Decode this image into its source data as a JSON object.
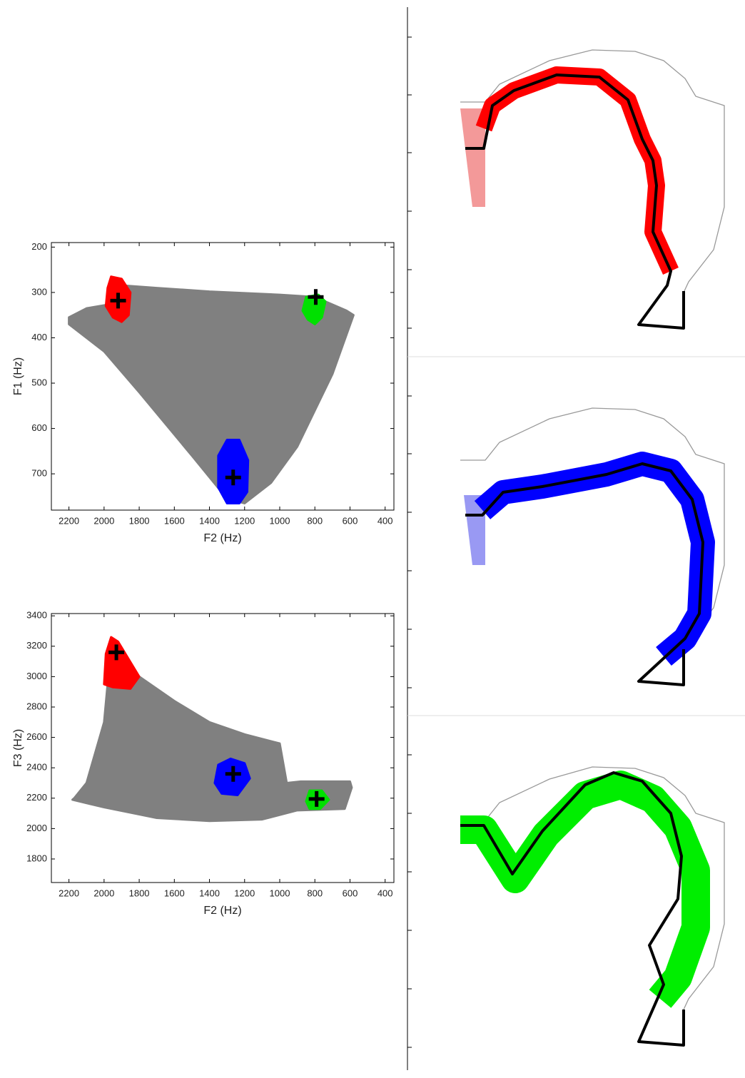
{
  "chart_data": [
    {
      "type": "region",
      "xlabel": "F2 (Hz)",
      "ylabel": "F1 (Hz)",
      "xlim": [
        2300,
        350
      ],
      "ylim": [
        780,
        190
      ],
      "xticks": [
        2200,
        2000,
        1800,
        1600,
        1400,
        1200,
        1000,
        800,
        600,
        400
      ],
      "yticks": [
        200,
        300,
        400,
        500,
        600,
        700
      ],
      "series": [
        {
          "color": "#808080",
          "x": [
            2200,
            2100,
            1950,
            1880,
            1700,
            1400,
            1000,
            800,
            620,
            580,
            700,
            900,
            1050,
            1200,
            1300,
            1500,
            1800,
            2000,
            2200
          ],
          "y": [
            355,
            335,
            325,
            285,
            290,
            298,
            305,
            310,
            340,
            350,
            480,
            640,
            720,
            765,
            755,
            660,
            520,
            430,
            370
          ]
        },
        {
          "color": "#ff0000",
          "x": [
            1960,
            1900,
            1850,
            1860,
            1900,
            1950,
            1990,
            1980
          ],
          "y": [
            265,
            270,
            300,
            350,
            365,
            355,
            330,
            290
          ]
        },
        {
          "color": "#00e000",
          "x": [
            850,
            780,
            740,
            760,
            800,
            840,
            870
          ],
          "y": [
            310,
            305,
            320,
            355,
            370,
            360,
            340
          ]
        },
        {
          "color": "#0000ff",
          "x": [
            1300,
            1230,
            1180,
            1185,
            1230,
            1300,
            1350,
            1350
          ],
          "y": [
            625,
            625,
            670,
            740,
            765,
            765,
            730,
            660
          ]
        }
      ],
      "markers": {
        "color": "#000000",
        "x": [
          1920,
          795,
          1265
        ],
        "y": [
          318,
          310,
          708
        ]
      }
    },
    {
      "type": "region",
      "xlabel": "F2 (Hz)",
      "ylabel": "F3 (Hz)",
      "xlim": [
        2300,
        350
      ],
      "ylim": [
        1645,
        3415
      ],
      "xticks": [
        2200,
        2000,
        1800,
        1600,
        1400,
        1200,
        1000,
        800,
        600,
        400
      ],
      "yticks": [
        1800,
        2000,
        2200,
        2400,
        2600,
        2800,
        3000,
        3200,
        3400
      ],
      "series": [
        {
          "color": "#808080",
          "x": [
            2170,
            2100,
            2000,
            1980,
            1800,
            1600,
            1400,
            1200,
            1000,
            960,
            880,
            600,
            590,
            630,
            900,
            1100,
            1400,
            1700,
            2000,
            2180
          ],
          "y": [
            2200,
            2300,
            2700,
            2950,
            3000,
            2840,
            2700,
            2620,
            2560,
            2300,
            2310,
            2310,
            2270,
            2130,
            2120,
            2060,
            2050,
            2070,
            2140,
            2190
          ]
        },
        {
          "color": "#ff0000",
          "x": [
            1960,
            1920,
            1800,
            1850,
            1950,
            2000,
            1990
          ],
          "y": [
            3260,
            3230,
            3000,
            2920,
            2930,
            2950,
            3150
          ]
        },
        {
          "color": "#0000ff",
          "x": [
            1280,
            1200,
            1170,
            1240,
            1330,
            1370,
            1350
          ],
          "y": [
            2460,
            2430,
            2330,
            2220,
            2230,
            2300,
            2420
          ]
        },
        {
          "color": "#00e000",
          "x": [
            830,
            760,
            720,
            770,
            830,
            850
          ],
          "y": [
            2250,
            2250,
            2190,
            2130,
            2130,
            2180
          ]
        }
      ],
      "markers": {
        "color": "#000000",
        "x": [
          1930,
          1265,
          790
        ],
        "y": [
          3160,
          2360,
          2195
        ]
      }
    }
  ]
}
